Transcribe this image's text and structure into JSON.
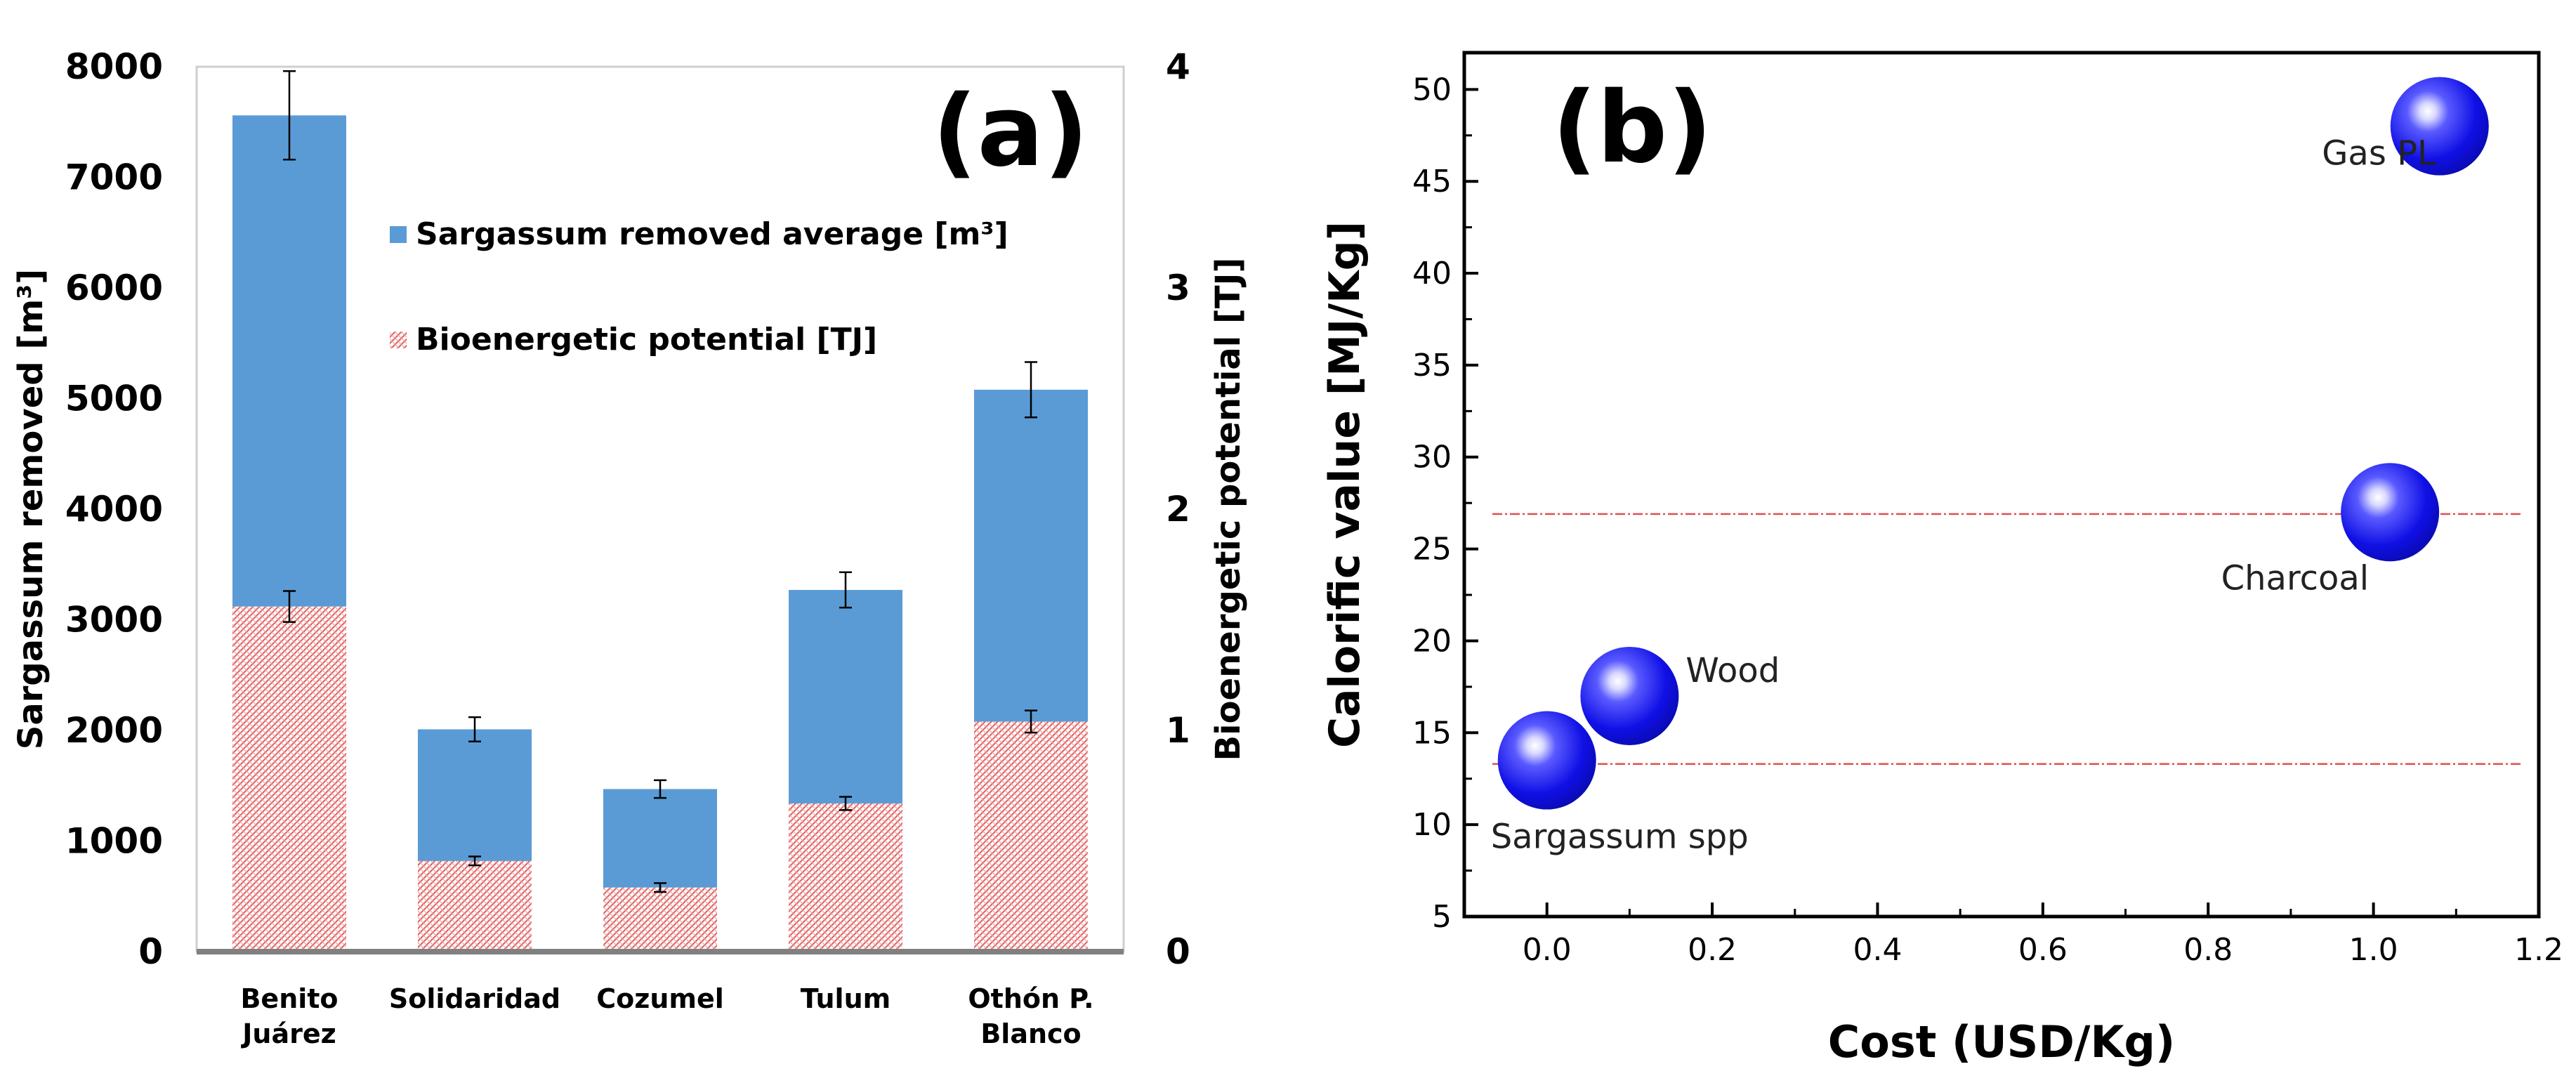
{
  "chart_data": [
    {
      "type": "bar",
      "panel_label": "(a)",
      "categories": [
        {
          "line1": "Benito",
          "line2": "Juárez"
        },
        {
          "line1": "Solidaridad",
          "line2": ""
        },
        {
          "line1": "Cozumel",
          "line2": ""
        },
        {
          "line1": "Tulum",
          "line2": ""
        },
        {
          "line1": "Othón P.",
          "line2": "Blanco"
        }
      ],
      "series": [
        {
          "name": "Sargassum removed average [m³]",
          "axis": "left",
          "color": "#5b9bd5",
          "values": [
            7560,
            2010,
            1470,
            3270,
            5080
          ],
          "errors": [
            400,
            110,
            80,
            160,
            250
          ]
        },
        {
          "name": "Bioenergetic potential [TJ]",
          "axis": "right",
          "color": "#e06666",
          "values": [
            1.56,
            0.41,
            0.29,
            0.67,
            1.04
          ],
          "errors": [
            0.07,
            0.02,
            0.02,
            0.03,
            0.05
          ]
        }
      ],
      "ylabel": "Sargassum removed [m³]",
      "y2label": "Bioenergetic potential [TJ]",
      "ylim": [
        0,
        8000
      ],
      "y2lim": [
        0,
        4
      ],
      "yticks": [
        "0",
        "1000",
        "2000",
        "3000",
        "4000",
        "5000",
        "6000",
        "7000",
        "8000"
      ],
      "y2ticks": [
        "0",
        "1",
        "2",
        "3",
        "4"
      ]
    },
    {
      "type": "scatter",
      "panel_label": "(b)",
      "points": [
        {
          "label": "Sargassum spp",
          "x": 0.0,
          "y": 13.5
        },
        {
          "label": "Wood",
          "x": 0.1,
          "y": 17.0
        },
        {
          "label": "Charcoal",
          "x": 1.02,
          "y": 27.0
        },
        {
          "label": "Gas PL",
          "x": 1.08,
          "y": 48.0
        }
      ],
      "reference_lines_y": [
        26.9,
        13.3
      ],
      "xlabel": "Cost (USD/Kg)",
      "ylabel": "Calorific value [MJ/Kg]",
      "xlim": [
        -0.1,
        1.2
      ],
      "ylim": [
        5,
        52
      ],
      "xticks": [
        "0.0",
        "0.2",
        "0.4",
        "0.6",
        "0.8",
        "1.0",
        "1.2"
      ],
      "yticks": [
        "5",
        "10",
        "15",
        "20",
        "25",
        "30",
        "35",
        "40",
        "45",
        "50"
      ],
      "marker_color": "#1a1aee",
      "line_color": "#e05050"
    }
  ]
}
